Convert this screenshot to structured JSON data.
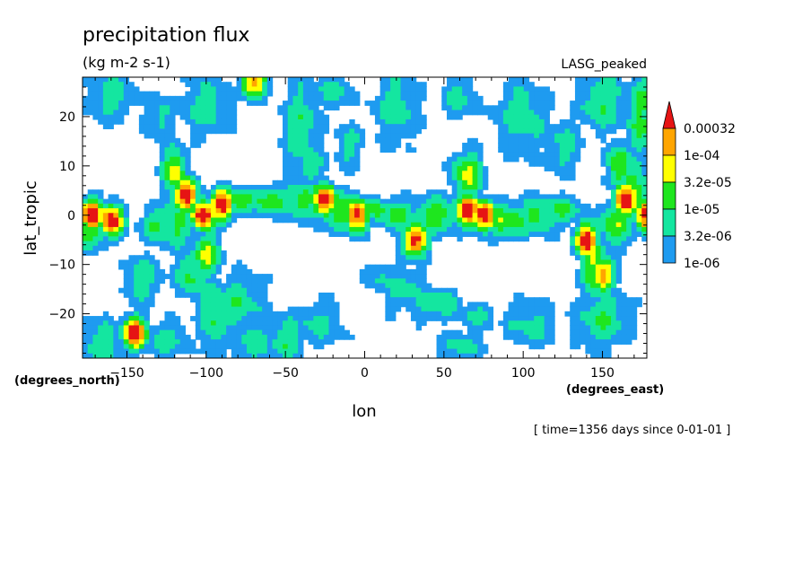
{
  "chart_data": {
    "type": "heatmap",
    "title": "precipitation flux",
    "units": "(kg m-2 s-1)",
    "dataset_label": "LASG_peaked",
    "xlabel": "lon",
    "ylabel": "lat_tropic",
    "x_units": "(degrees_east)",
    "y_units": "(degrees_north)",
    "time_note": "[ time=1356 days since 0-01-01 ]",
    "xlim": [
      -178,
      178
    ],
    "ylim": [
      -29,
      28
    ],
    "x_ticks": [
      -150,
      -100,
      -50,
      0,
      50,
      100,
      150
    ],
    "y_ticks": [
      -20,
      -10,
      0,
      10,
      20
    ],
    "x_tick_labels": [
      "−150",
      "−100",
      "−50",
      "0",
      "50",
      "100",
      "150"
    ],
    "y_tick_labels": [
      "−20",
      "−10",
      "0",
      "10",
      "20"
    ],
    "colorbar": {
      "levels": [
        "1e-06",
        "3.2e-06",
        "1e-05",
        "3.2e-05",
        "1e-04",
        "0.00032"
      ],
      "colors": [
        "#ffffff",
        "#1e9bf0",
        "#14e6a0",
        "#1ee61e",
        "#ffff00",
        "#ffa500",
        "#e61414"
      ]
    },
    "features": [
      {
        "lon": -172,
        "lat": 0,
        "level": 6
      },
      {
        "lon": -160,
        "lat": -1,
        "level": 6
      },
      {
        "lon": -145,
        "lat": -24,
        "level": 6
      },
      {
        "lon": -113,
        "lat": 4,
        "level": 6
      },
      {
        "lon": -102,
        "lat": 0,
        "level": 6
      },
      {
        "lon": -90,
        "lat": 2,
        "level": 6
      },
      {
        "lon": -70,
        "lat": 27,
        "level": 5
      },
      {
        "lon": -25,
        "lat": 3,
        "level": 6
      },
      {
        "lon": -5,
        "lat": 0,
        "level": 6
      },
      {
        "lon": 32,
        "lat": -5,
        "level": 6
      },
      {
        "lon": 65,
        "lat": 1,
        "level": 6
      },
      {
        "lon": 75,
        "lat": 0,
        "level": 6
      },
      {
        "lon": 140,
        "lat": -5,
        "level": 6
      },
      {
        "lon": 150,
        "lat": -12,
        "level": 5
      },
      {
        "lon": 165,
        "lat": 3,
        "level": 6
      },
      {
        "lon": 178,
        "lat": 0,
        "level": 6
      }
    ]
  }
}
